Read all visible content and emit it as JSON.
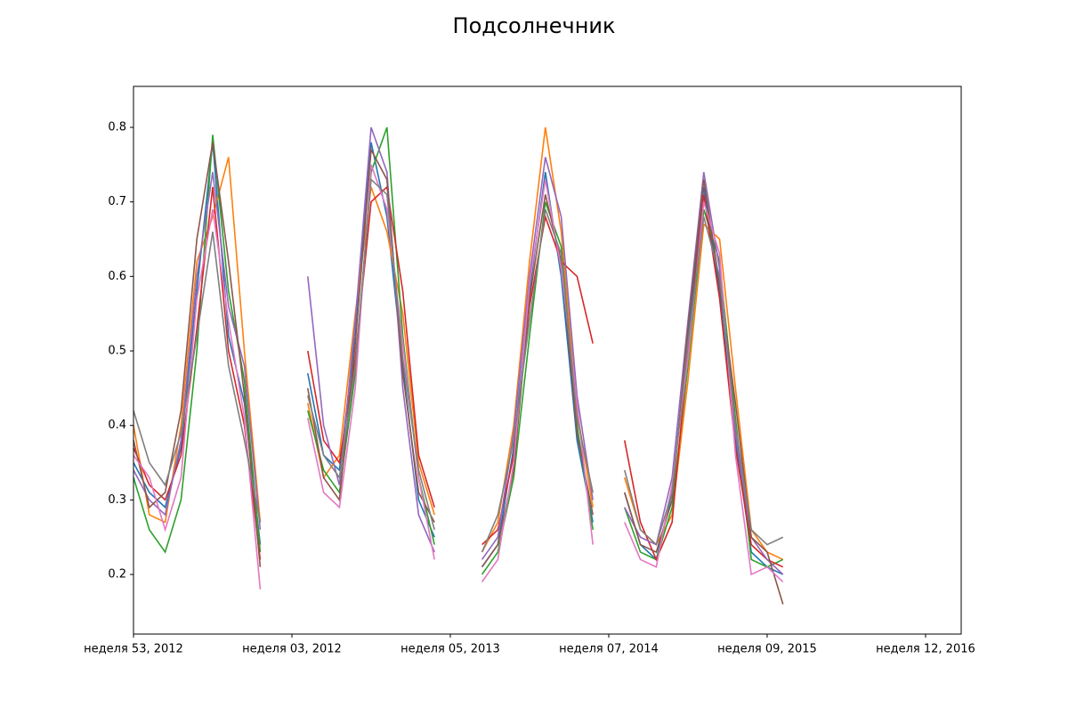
{
  "chart_data": {
    "type": "line",
    "title": "Подсолнечник",
    "x": [
      0,
      0.1,
      0.2,
      0.3,
      0.4,
      0.5,
      0.6,
      0.7,
      0.8,
      0.9,
      1,
      1.1,
      1.2,
      1.3,
      1.4,
      1.5,
      1.6,
      1.7,
      1.8,
      1.9,
      2,
      2.1,
      2.2,
      2.3,
      2.4,
      2.5,
      2.6,
      2.7,
      2.8,
      2.9,
      3,
      3.1,
      3.2,
      3.3,
      3.4,
      3.5,
      3.6,
      3.7,
      3.8,
      3.9,
      4,
      4.1
    ],
    "series": [
      {
        "color": "#1f77b4",
        "values": [
          0.35,
          0.31,
          0.29,
          0.37,
          0.58,
          0.78,
          0.52,
          0.43,
          0.24,
          null,
          null,
          0.47,
          0.36,
          0.34,
          0.52,
          0.78,
          0.68,
          0.48,
          0.3,
          0.25,
          null,
          null,
          0.21,
          0.24,
          0.37,
          0.58,
          0.74,
          0.6,
          0.38,
          0.27,
          null,
          0.31,
          0.24,
          0.22,
          0.31,
          0.52,
          0.72,
          0.58,
          0.38,
          0.23,
          0.21,
          0.2
        ]
      },
      {
        "color": "#ff7f0e",
        "values": [
          0.4,
          0.28,
          0.27,
          0.4,
          0.62,
          0.68,
          0.76,
          0.5,
          0.27,
          null,
          null,
          0.43,
          0.33,
          0.36,
          0.55,
          0.72,
          0.66,
          0.55,
          0.35,
          0.28,
          null,
          null,
          0.23,
          0.27,
          0.4,
          0.62,
          0.8,
          0.66,
          0.42,
          0.29,
          null,
          0.33,
          0.26,
          0.24,
          0.28,
          0.46,
          0.67,
          0.65,
          0.45,
          0.26,
          0.23,
          0.22
        ]
      },
      {
        "color": "#2ca02c",
        "values": [
          0.33,
          0.26,
          0.23,
          0.3,
          0.5,
          0.79,
          0.58,
          0.46,
          0.23,
          null,
          null,
          0.42,
          0.34,
          0.31,
          0.47,
          0.74,
          0.8,
          0.52,
          0.33,
          0.24,
          null,
          null,
          0.2,
          0.23,
          0.33,
          0.52,
          0.7,
          0.64,
          0.4,
          0.26,
          null,
          0.29,
          0.23,
          0.22,
          0.29,
          0.48,
          0.69,
          0.62,
          0.41,
          0.22,
          0.21,
          0.22
        ]
      },
      {
        "color": "#d62728",
        "values": [
          0.37,
          0.32,
          0.3,
          0.36,
          0.53,
          0.72,
          0.5,
          0.4,
          0.22,
          null,
          null,
          0.5,
          0.38,
          0.35,
          0.49,
          0.7,
          0.72,
          0.58,
          0.36,
          0.29,
          null,
          null,
          0.24,
          0.26,
          0.36,
          0.56,
          0.68,
          0.62,
          0.6,
          0.51,
          null,
          0.38,
          0.27,
          0.22,
          0.27,
          0.5,
          0.71,
          0.57,
          0.37,
          0.24,
          0.22,
          0.21
        ]
      },
      {
        "color": "#9467bd",
        "values": [
          0.34,
          0.3,
          0.28,
          0.38,
          0.6,
          0.74,
          0.56,
          0.48,
          0.26,
          null,
          null,
          0.6,
          0.4,
          0.32,
          0.54,
          0.8,
          0.74,
          0.45,
          0.28,
          0.23,
          null,
          null,
          0.22,
          0.25,
          0.39,
          0.6,
          0.76,
          0.68,
          0.44,
          0.3,
          null,
          0.29,
          0.25,
          0.24,
          0.33,
          0.54,
          0.74,
          0.61,
          0.39,
          0.25,
          0.22,
          0.2
        ]
      },
      {
        "color": "#8c564b",
        "values": [
          0.38,
          0.29,
          0.31,
          0.42,
          0.65,
          0.78,
          0.62,
          0.44,
          0.21,
          null,
          null,
          0.45,
          0.33,
          0.3,
          0.51,
          0.77,
          0.73,
          0.47,
          0.31,
          0.27,
          null,
          null,
          0.21,
          0.24,
          0.34,
          0.57,
          0.71,
          0.62,
          0.39,
          0.28,
          null,
          0.31,
          0.24,
          0.23,
          0.3,
          0.53,
          0.73,
          0.59,
          0.43,
          0.25,
          0.23,
          0.16
        ]
      },
      {
        "color": "#e377c2",
        "values": [
          0.36,
          0.33,
          0.26,
          0.33,
          0.57,
          0.69,
          0.54,
          0.41,
          0.18,
          null,
          null,
          0.41,
          0.31,
          0.29,
          0.45,
          0.75,
          0.69,
          0.51,
          0.33,
          0.22,
          null,
          null,
          0.19,
          0.22,
          0.35,
          0.59,
          0.73,
          0.61,
          0.43,
          0.24,
          null,
          0.27,
          0.22,
          0.21,
          0.32,
          0.49,
          0.7,
          0.63,
          0.36,
          0.2,
          0.21,
          0.19
        ]
      },
      {
        "color": "#7f7f7f",
        "values": [
          0.42,
          0.35,
          0.32,
          0.39,
          0.52,
          0.66,
          0.48,
          0.38,
          0.27,
          null,
          null,
          0.44,
          0.36,
          0.33,
          0.48,
          0.73,
          0.71,
          0.49,
          0.34,
          0.26,
          null,
          null,
          0.23,
          0.28,
          0.38,
          0.54,
          0.69,
          0.63,
          0.41,
          0.31,
          null,
          0.34,
          0.26,
          0.24,
          0.31,
          0.51,
          0.68,
          0.6,
          0.4,
          0.26,
          0.24,
          0.25
        ]
      }
    ],
    "xlim": [
      0,
      5.225
    ],
    "xticks": [
      {
        "value": 0,
        "label": "неделя 53, 2012"
      },
      {
        "value": 1,
        "label": "неделя 03, 2012"
      },
      {
        "value": 2,
        "label": "неделя 05, 2013"
      },
      {
        "value": 3,
        "label": "неделя 07, 2014"
      },
      {
        "value": 4,
        "label": "неделя 09, 2015"
      },
      {
        "value": 5,
        "label": "неделя 12, 2016"
      }
    ],
    "ylim": [
      0.12,
      0.855
    ],
    "yticks": [
      0.2,
      0.3,
      0.4,
      0.5,
      0.6,
      0.7,
      0.8
    ]
  }
}
